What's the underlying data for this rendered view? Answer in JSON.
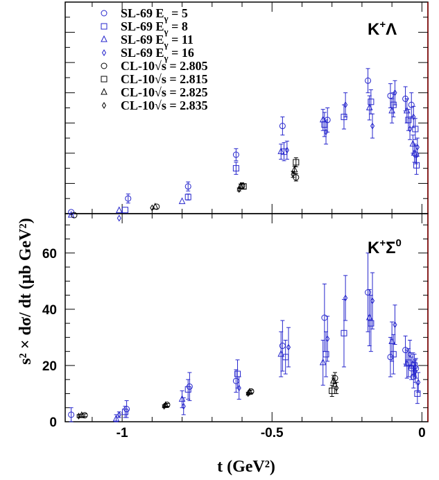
{
  "chart_data": {
    "type": "scatter",
    "xlabel": "t (GeV²)",
    "ylabel": "s² × dσ/ dt (μb GeV²)",
    "xlim": [
      -1.19,
      0.02
    ],
    "x_ticks": [
      "-1",
      "-0.5",
      "0"
    ],
    "y_ticks_bottom": [
      "0",
      "20",
      "40",
      "60"
    ],
    "colors": {
      "sl69": "#2424cc",
      "cl10": "#000000",
      "frame": "#000000",
      "panel_border_right": "#8b0000"
    },
    "legend": [
      {
        "label": "SL-69 E",
        "sub": "γ",
        "rest": " = 5",
        "marker": "circle",
        "color": "#2424cc"
      },
      {
        "label": "SL-69 E",
        "sub": "γ",
        "rest": " = 8",
        "marker": "square",
        "color": "#2424cc"
      },
      {
        "label": "SL-69 E",
        "sub": "γ",
        "rest": " = 11",
        "marker": "triangle",
        "color": "#2424cc"
      },
      {
        "label": "SL-69 E",
        "sub": "γ",
        "rest": " = 16",
        "marker": "diamond",
        "color": "#2424cc"
      },
      {
        "label": "CL-10",
        "sub": "",
        "rest": "√s = 2.805",
        "marker": "circle",
        "color": "#000000"
      },
      {
        "label": "CL-10",
        "sub": "",
        "rest": "√s = 2.815",
        "marker": "square",
        "color": "#000000"
      },
      {
        "label": "CL-10",
        "sub": "",
        "rest": "√s = 2.825",
        "marker": "triangle",
        "color": "#000000"
      },
      {
        "label": "CL-10",
        "sub": "",
        "rest": "√s = 2.835",
        "marker": "diamond",
        "color": "#000000"
      }
    ],
    "panels": [
      {
        "id": "top",
        "label_main": "K",
        "label_sup": "+",
        "label_after": "Λ",
        "ylim": [
          0,
          7
        ],
        "points": [
          {
            "x": -1.17,
            "y": 0.05,
            "err": 0.0,
            "m": "circle",
            "c": "sl69"
          },
          {
            "x": -1.17,
            "y": -0.05,
            "err": 0.0,
            "m": "triangle",
            "c": "sl69"
          },
          {
            "x": -1.16,
            "y": -0.05,
            "err": 0.0,
            "m": "circle",
            "c": "cl10"
          },
          {
            "x": -1.01,
            "y": 0.1,
            "err": 0.0,
            "m": "triangle",
            "c": "sl69"
          },
          {
            "x": -1.01,
            "y": -0.15,
            "err": 0.0,
            "m": "diamond",
            "c": "sl69"
          },
          {
            "x": -0.99,
            "y": 0.12,
            "err": 0.0,
            "m": "square",
            "c": "sl69"
          },
          {
            "x": -0.98,
            "y": 0.5,
            "err": 0.15,
            "m": "circle",
            "c": "sl69"
          },
          {
            "x": -0.9,
            "y": 0.19,
            "err": 0.0,
            "m": "diamond",
            "c": "cl10"
          },
          {
            "x": -0.89,
            "y": 0.22,
            "err": 0.0,
            "m": "triangle",
            "c": "cl10"
          },
          {
            "x": -0.885,
            "y": 0.23,
            "err": 0.0,
            "m": "circle",
            "c": "cl10"
          },
          {
            "x": -0.8,
            "y": 0.4,
            "err": 0.0,
            "m": "triangle",
            "c": "sl69"
          },
          {
            "x": -0.78,
            "y": 0.55,
            "err": 0.1,
            "m": "square",
            "c": "sl69"
          },
          {
            "x": -0.78,
            "y": 0.9,
            "err": 0.15,
            "m": "circle",
            "c": "sl69"
          },
          {
            "x": -0.62,
            "y": 1.5,
            "err": 0.2,
            "m": "square",
            "c": "sl69"
          },
          {
            "x": -0.62,
            "y": 1.95,
            "err": 0.2,
            "m": "circle",
            "c": "sl69"
          },
          {
            "x": -0.61,
            "y": 0.8,
            "err": 0.05,
            "m": "diamond",
            "c": "cl10"
          },
          {
            "x": -0.605,
            "y": 0.9,
            "err": 0.08,
            "m": "triangle",
            "c": "cl10"
          },
          {
            "x": -0.6,
            "y": 0.92,
            "err": 0.1,
            "m": "circle",
            "c": "cl10"
          },
          {
            "x": -0.595,
            "y": 0.9,
            "err": 0.08,
            "m": "square",
            "c": "cl10"
          },
          {
            "x": -0.47,
            "y": 2.05,
            "err": 0.25,
            "m": "triangle",
            "c": "sl69"
          },
          {
            "x": -0.465,
            "y": 2.9,
            "err": 0.3,
            "m": "circle",
            "c": "sl69"
          },
          {
            "x": -0.46,
            "y": 2.05,
            "err": 0.3,
            "m": "square",
            "c": "sl69"
          },
          {
            "x": -0.45,
            "y": 2.1,
            "err": 0.3,
            "m": "diamond",
            "c": "sl69"
          },
          {
            "x": -0.43,
            "y": 1.3,
            "err": 0.1,
            "m": "diamond",
            "c": "cl10"
          },
          {
            "x": -0.425,
            "y": 1.45,
            "err": 0.12,
            "m": "triangle",
            "c": "cl10"
          },
          {
            "x": -0.42,
            "y": 1.2,
            "err": 0.12,
            "m": "circle",
            "c": "cl10"
          },
          {
            "x": -0.42,
            "y": 1.7,
            "err": 0.15,
            "m": "square",
            "c": "cl10"
          },
          {
            "x": -0.33,
            "y": 3.1,
            "err": 0.35,
            "m": "triangle",
            "c": "sl69"
          },
          {
            "x": -0.325,
            "y": 2.95,
            "err": 0.4,
            "m": "square",
            "c": "sl69"
          },
          {
            "x": -0.32,
            "y": 2.7,
            "err": 0.4,
            "m": "diamond",
            "c": "sl69"
          },
          {
            "x": -0.315,
            "y": 3.1,
            "err": 0.4,
            "m": "circle",
            "c": "sl69"
          },
          {
            "x": -0.26,
            "y": 3.2,
            "err": 0.4,
            "m": "square",
            "c": "sl69"
          },
          {
            "x": -0.255,
            "y": 3.6,
            "err": 0.4,
            "m": "diamond",
            "c": "sl69"
          },
          {
            "x": -0.18,
            "y": 4.4,
            "err": 0.4,
            "m": "circle",
            "c": "sl69"
          },
          {
            "x": -0.175,
            "y": 3.5,
            "err": 0.4,
            "m": "triangle",
            "c": "sl69"
          },
          {
            "x": -0.17,
            "y": 3.7,
            "err": 0.4,
            "m": "square",
            "c": "sl69"
          },
          {
            "x": -0.165,
            "y": 2.9,
            "err": 0.4,
            "m": "diamond",
            "c": "sl69"
          },
          {
            "x": -0.105,
            "y": 3.9,
            "err": 0.4,
            "m": "circle",
            "c": "sl69"
          },
          {
            "x": -0.1,
            "y": 3.4,
            "err": 0.4,
            "m": "triangle",
            "c": "sl69"
          },
          {
            "x": -0.095,
            "y": 3.6,
            "err": 0.4,
            "m": "square",
            "c": "sl69"
          },
          {
            "x": -0.09,
            "y": 4.0,
            "err": 0.4,
            "m": "diamond",
            "c": "sl69"
          },
          {
            "x": -0.055,
            "y": 3.8,
            "err": 0.4,
            "m": "circle",
            "c": "sl69"
          },
          {
            "x": -0.05,
            "y": 3.4,
            "err": 0.4,
            "m": "triangle",
            "c": "sl69"
          },
          {
            "x": -0.045,
            "y": 3.1,
            "err": 0.35,
            "m": "square",
            "c": "sl69"
          },
          {
            "x": -0.04,
            "y": 2.8,
            "err": 0.35,
            "m": "diamond",
            "c": "sl69"
          },
          {
            "x": -0.035,
            "y": 3.6,
            "err": 0.4,
            "m": "circle",
            "c": "sl69"
          },
          {
            "x": -0.03,
            "y": 2.3,
            "err": 0.3,
            "m": "triangle",
            "c": "sl69"
          },
          {
            "x": -0.028,
            "y": 3.2,
            "err": 0.35,
            "m": "diamond",
            "c": "sl69"
          },
          {
            "x": -0.025,
            "y": 2.0,
            "err": 0.3,
            "m": "triangle",
            "c": "sl69"
          },
          {
            "x": -0.022,
            "y": 2.8,
            "err": 0.35,
            "m": "square",
            "c": "sl69"
          },
          {
            "x": -0.02,
            "y": 1.95,
            "err": 0.3,
            "m": "circle",
            "c": "sl69"
          },
          {
            "x": -0.018,
            "y": 1.6,
            "err": 0.3,
            "m": "square",
            "c": "sl69"
          },
          {
            "x": -0.015,
            "y": 2.2,
            "err": 0.3,
            "m": "diamond",
            "c": "sl69"
          }
        ]
      },
      {
        "id": "bottom",
        "label_main": "K",
        "label_sup": "+",
        "label_after": "Σ",
        "label_after_sup": "0",
        "ylim": [
          0,
          74
        ],
        "points": [
          {
            "x": -1.17,
            "y": 2.5,
            "err": 2.5,
            "m": "circle",
            "c": "sl69"
          },
          {
            "x": -1.145,
            "y": 2.0,
            "err": 0.5,
            "m": "diamond",
            "c": "cl10"
          },
          {
            "x": -1.135,
            "y": 2.2,
            "err": 0.5,
            "m": "triangle",
            "c": "cl10"
          },
          {
            "x": -1.125,
            "y": 2.3,
            "err": 0.5,
            "m": "circle",
            "c": "cl10"
          },
          {
            "x": -1.02,
            "y": 1.0,
            "err": 1.5,
            "m": "triangle",
            "c": "sl69"
          },
          {
            "x": -1.01,
            "y": 2.5,
            "err": 1.0,
            "m": "diamond",
            "c": "sl69"
          },
          {
            "x": -0.99,
            "y": 3.5,
            "err": 2.0,
            "m": "square",
            "c": "sl69"
          },
          {
            "x": -0.985,
            "y": 4.5,
            "err": 3.0,
            "m": "circle",
            "c": "sl69"
          },
          {
            "x": -0.86,
            "y": 5.5,
            "err": 0.5,
            "m": "diamond",
            "c": "cl10"
          },
          {
            "x": -0.855,
            "y": 5.8,
            "err": 0.5,
            "m": "triangle",
            "c": "cl10"
          },
          {
            "x": -0.85,
            "y": 6.0,
            "err": 0.5,
            "m": "circle",
            "c": "cl10"
          },
          {
            "x": -0.8,
            "y": 8.0,
            "err": 3.0,
            "m": "triangle",
            "c": "sl69"
          },
          {
            "x": -0.795,
            "y": 5.5,
            "err": 3.0,
            "m": "diamond",
            "c": "sl69"
          },
          {
            "x": -0.78,
            "y": 11.5,
            "err": 3.5,
            "m": "square",
            "c": "sl69"
          },
          {
            "x": -0.775,
            "y": 12.5,
            "err": 5.0,
            "m": "circle",
            "c": "sl69"
          },
          {
            "x": -0.62,
            "y": 14.5,
            "err": 4.0,
            "m": "circle",
            "c": "sl69"
          },
          {
            "x": -0.615,
            "y": 17.0,
            "err": 5.0,
            "m": "square",
            "c": "sl69"
          },
          {
            "x": -0.61,
            "y": 12.0,
            "err": 4.0,
            "m": "diamond",
            "c": "sl69"
          },
          {
            "x": -0.58,
            "y": 10.0,
            "err": 0.5,
            "m": "diamond",
            "c": "cl10"
          },
          {
            "x": -0.575,
            "y": 10.5,
            "err": 0.5,
            "m": "triangle",
            "c": "cl10"
          },
          {
            "x": -0.57,
            "y": 10.8,
            "err": 0.5,
            "m": "circle",
            "c": "cl10"
          },
          {
            "x": -0.47,
            "y": 24.0,
            "err": 8.0,
            "m": "triangle",
            "c": "sl69"
          },
          {
            "x": -0.465,
            "y": 27.0,
            "err": 9.0,
            "m": "circle",
            "c": "sl69"
          },
          {
            "x": -0.455,
            "y": 23.0,
            "err": 6.0,
            "m": "square",
            "c": "sl69"
          },
          {
            "x": -0.445,
            "y": 26.5,
            "err": 7.0,
            "m": "diamond",
            "c": "sl69"
          },
          {
            "x": -0.33,
            "y": 21.0,
            "err": 8.0,
            "m": "triangle",
            "c": "sl69"
          },
          {
            "x": -0.325,
            "y": 37.0,
            "err": 12.0,
            "m": "circle",
            "c": "sl69"
          },
          {
            "x": -0.32,
            "y": 24.0,
            "err": 8.0,
            "m": "square",
            "c": "sl69"
          },
          {
            "x": -0.315,
            "y": 29.5,
            "err": 8.0,
            "m": "diamond",
            "c": "sl69"
          },
          {
            "x": -0.3,
            "y": 11.0,
            "err": 2.0,
            "m": "square",
            "c": "cl10"
          },
          {
            "x": -0.295,
            "y": 14.5,
            "err": 2.0,
            "m": "triangle",
            "c": "cl10"
          },
          {
            "x": -0.29,
            "y": 15.5,
            "err": 2.0,
            "m": "circle",
            "c": "cl10"
          },
          {
            "x": -0.285,
            "y": 12.0,
            "err": 2.0,
            "m": "diamond",
            "c": "cl10"
          },
          {
            "x": -0.26,
            "y": 31.5,
            "err": 12.0,
            "m": "square",
            "c": "sl69"
          },
          {
            "x": -0.255,
            "y": 44.0,
            "err": 8.0,
            "m": "diamond",
            "c": "sl69"
          },
          {
            "x": -0.18,
            "y": 46.0,
            "err": 14.0,
            "m": "circle",
            "c": "sl69"
          },
          {
            "x": -0.175,
            "y": 37.0,
            "err": 10.0,
            "m": "triangle",
            "c": "sl69"
          },
          {
            "x": -0.17,
            "y": 35.0,
            "err": 10.0,
            "m": "square",
            "c": "sl69"
          },
          {
            "x": -0.165,
            "y": 43.0,
            "err": 10.0,
            "m": "diamond",
            "c": "sl69"
          },
          {
            "x": -0.105,
            "y": 23.0,
            "err": 7.0,
            "m": "circle",
            "c": "sl69"
          },
          {
            "x": -0.1,
            "y": 28.5,
            "err": 7.0,
            "m": "triangle",
            "c": "sl69"
          },
          {
            "x": -0.095,
            "y": 24.0,
            "err": 7.0,
            "m": "square",
            "c": "sl69"
          },
          {
            "x": -0.09,
            "y": 34.5,
            "err": 7.0,
            "m": "diamond",
            "c": "sl69"
          },
          {
            "x": -0.055,
            "y": 25.5,
            "err": 5.0,
            "m": "circle",
            "c": "sl69"
          },
          {
            "x": -0.05,
            "y": 20.5,
            "err": 5.0,
            "m": "triangle",
            "c": "sl69"
          },
          {
            "x": -0.045,
            "y": 21.0,
            "err": 5.0,
            "m": "square",
            "c": "sl69"
          },
          {
            "x": -0.04,
            "y": 24.0,
            "err": 5.0,
            "m": "diamond",
            "c": "sl69"
          },
          {
            "x": -0.035,
            "y": 19.0,
            "err": 4.0,
            "m": "circle",
            "c": "sl69"
          },
          {
            "x": -0.03,
            "y": 20.5,
            "err": 4.0,
            "m": "triangle",
            "c": "sl69"
          },
          {
            "x": -0.028,
            "y": 16.0,
            "err": 4.0,
            "m": "circle",
            "c": "sl69"
          },
          {
            "x": -0.025,
            "y": 20.0,
            "err": 4.0,
            "m": "square",
            "c": "sl69"
          },
          {
            "x": -0.022,
            "y": 18.0,
            "err": 4.0,
            "m": "diamond",
            "c": "sl69"
          },
          {
            "x": -0.02,
            "y": 19.0,
            "err": 3.5,
            "m": "circle",
            "c": "sl69"
          },
          {
            "x": -0.015,
            "y": 10.0,
            "err": 3.5,
            "m": "square",
            "c": "sl69"
          },
          {
            "x": -0.012,
            "y": 14.0,
            "err": 3.5,
            "m": "diamond",
            "c": "sl69"
          }
        ]
      }
    ]
  }
}
